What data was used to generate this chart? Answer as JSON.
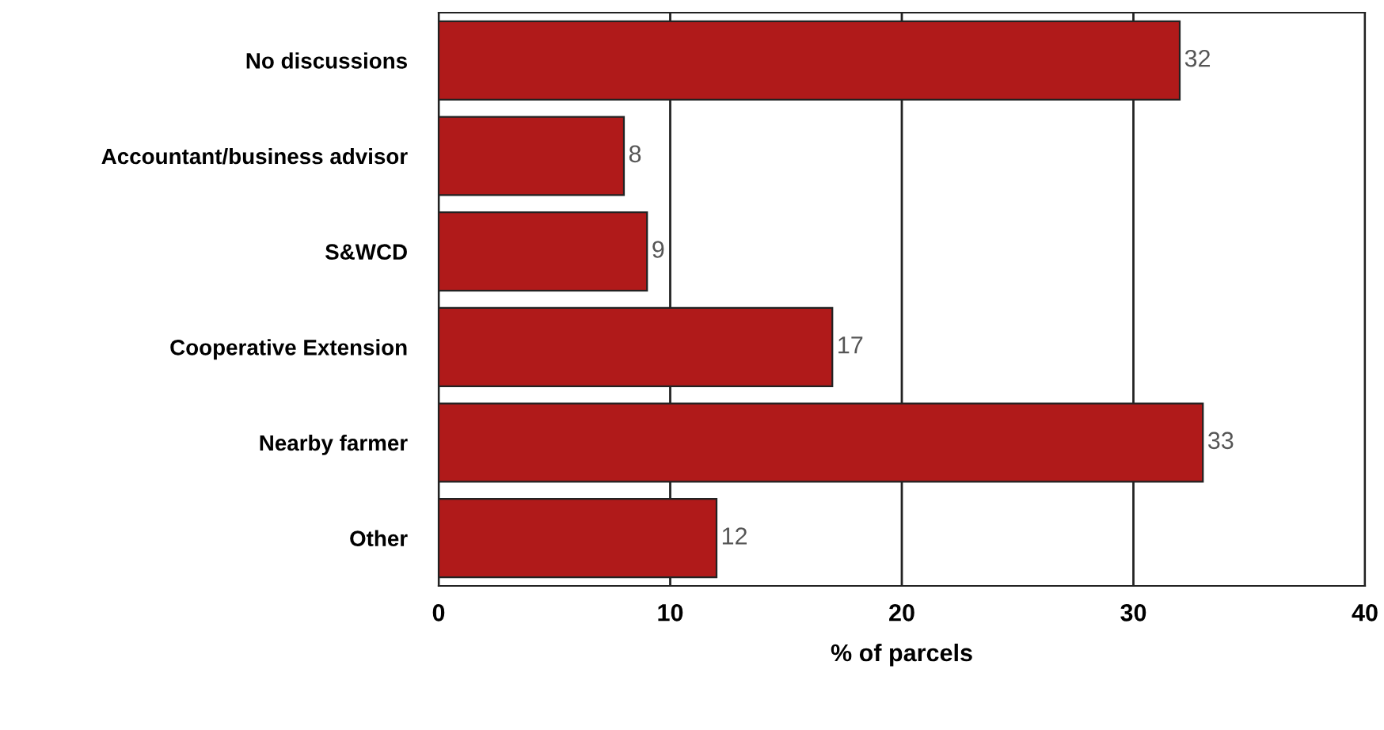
{
  "chart_data": {
    "type": "bar",
    "orientation": "horizontal",
    "xlabel": "% of parcels",
    "categories": [
      "No discussions",
      "Accountant/business advisor",
      "S&WCD",
      "Cooperative Extension",
      "Nearby farmer",
      "Other"
    ],
    "values": [
      32,
      8,
      9,
      17,
      33,
      12
    ],
    "color": "#b01a1a",
    "xlim": [
      0,
      40
    ],
    "xticks": [
      0,
      10,
      20,
      30,
      40
    ],
    "grid": "x",
    "data_labels": true
  }
}
